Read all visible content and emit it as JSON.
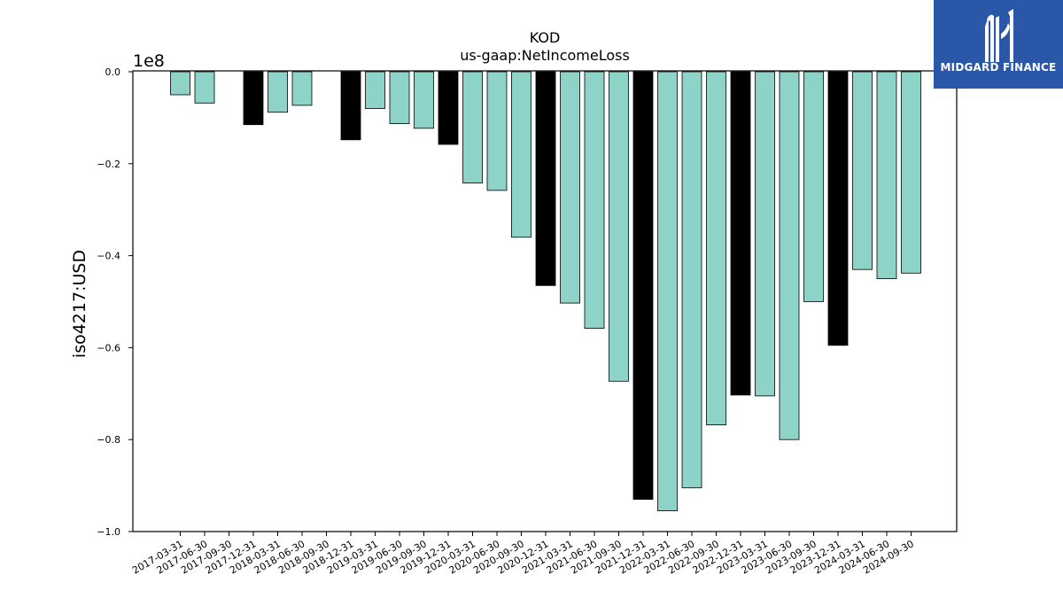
{
  "logo": {
    "text": "MIDGARD FINANCE",
    "icon": "midgard-logo-icon"
  },
  "chart_data": {
    "type": "bar",
    "title": "KOD",
    "subtitle": "us-gaap:NetIncomeLoss",
    "ylabel": "iso4217:USD",
    "xlabel": "",
    "offset_text": "1e8",
    "ylim": [
      -1.0,
      0.0
    ],
    "yticks": [
      "0.0",
      "−0.2",
      "−0.4",
      "−0.6",
      "−0.8",
      "−1.0"
    ],
    "grid": false,
    "colors": {
      "quarter": "#8dd3c7",
      "year_end": "#000000",
      "edge": "#000000"
    },
    "categories": [
      "2017-03-31",
      "2017-06-30",
      "2017-09-30",
      "2017-12-31",
      "2018-03-31",
      "2018-06-30",
      "2018-09-30",
      "2018-12-31",
      "2019-03-31",
      "2019-06-30",
      "2019-09-30",
      "2019-12-31",
      "2020-03-31",
      "2020-06-30",
      "2020-09-30",
      "2020-12-31",
      "2021-03-31",
      "2021-06-30",
      "2021-09-30",
      "2021-12-31",
      "2022-03-31",
      "2022-06-30",
      "2022-09-30",
      "2022-12-31",
      "2023-03-31",
      "2023-06-30",
      "2023-09-30",
      "2023-12-31",
      "2024-03-31",
      "2024-06-30",
      "2024-09-30"
    ],
    "values": [
      -0.05,
      -0.068,
      null,
      -0.115,
      -0.088,
      -0.073,
      null,
      -0.148,
      -0.08,
      -0.113,
      -0.123,
      -0.158,
      -0.242,
      -0.258,
      -0.36,
      -0.465,
      -0.503,
      -0.558,
      -0.673,
      -0.93,
      -0.955,
      -0.905,
      -0.768,
      -0.703,
      -0.705,
      -0.8,
      -0.5,
      -0.595,
      -0.43,
      -0.45,
      -0.438
    ],
    "bar_type": [
      "q",
      "q",
      "q",
      "y",
      "q",
      "q",
      "q",
      "y",
      "q",
      "q",
      "q",
      "y",
      "q",
      "q",
      "q",
      "y",
      "q",
      "q",
      "q",
      "y",
      "q",
      "q",
      "q",
      "y",
      "q",
      "q",
      "q",
      "y",
      "q",
      "q",
      "q"
    ]
  }
}
